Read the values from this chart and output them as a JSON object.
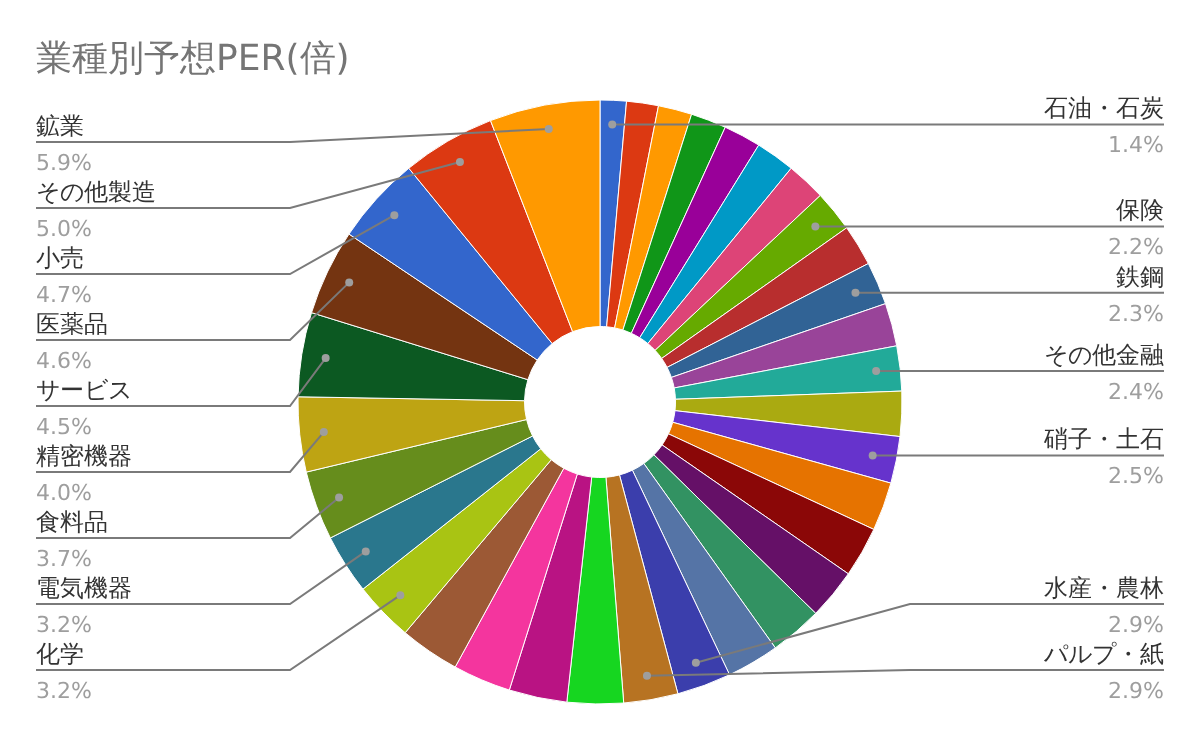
{
  "chart_data": {
    "type": "donut",
    "title": "業種別予想PER(倍)",
    "categories": [
      "石油・石炭",
      null,
      null,
      null,
      null,
      null,
      null,
      "保険",
      null,
      "鉄鋼",
      null,
      "その他金融",
      null,
      "硝子・土石",
      null,
      null,
      null,
      null,
      null,
      "水産・農林",
      "パルプ・紙",
      null,
      null,
      null,
      null,
      "化学",
      "電気機器",
      "食料品",
      "精密機器",
      "サービス",
      "医薬品",
      "小売",
      "その他製造",
      "鉱業"
    ],
    "values": [
      1.4,
      1.7,
      1.8,
      1.9,
      2.0,
      2.1,
      2.1,
      2.2,
      2.2,
      2.3,
      2.3,
      2.4,
      2.4,
      2.5,
      2.6,
      2.7,
      2.7,
      2.8,
      2.8,
      2.9,
      2.9,
      3.0,
      3.1,
      3.1,
      3.2,
      3.2,
      3.2,
      3.7,
      4.0,
      4.5,
      4.6,
      4.7,
      5.0,
      5.9
    ],
    "value_labels": [
      "1.4%",
      null,
      null,
      null,
      null,
      null,
      null,
      "2.2%",
      null,
      "2.3%",
      null,
      "2.4%",
      null,
      "2.5%",
      null,
      null,
      null,
      null,
      null,
      "2.9%",
      "2.9%",
      null,
      null,
      null,
      null,
      "3.2%",
      "3.2%",
      "3.7%",
      "4.0%",
      "4.5%",
      "4.6%",
      "4.7%",
      "5.0%",
      "5.9%"
    ],
    "colors": [
      "#3366cc",
      "#dc3912",
      "#ff9900",
      "#109618",
      "#990099",
      "#0099c6",
      "#dd4477",
      "#66aa00",
      "#b82e2e",
      "#316395",
      "#994499",
      "#22aa99",
      "#aaaa11",
      "#6633cc",
      "#e67300",
      "#8b0707",
      "#651067",
      "#329262",
      "#5574a6",
      "#3b3eac",
      "#b77322",
      "#16d620",
      "#b91383",
      "#f4359e",
      "#9c5935",
      "#a9c413",
      "#2a778d",
      "#668d1c",
      "#bea413",
      "#0c5922",
      "#743411",
      "#3366cc",
      "#dc3912",
      "#ff9900"
    ]
  }
}
